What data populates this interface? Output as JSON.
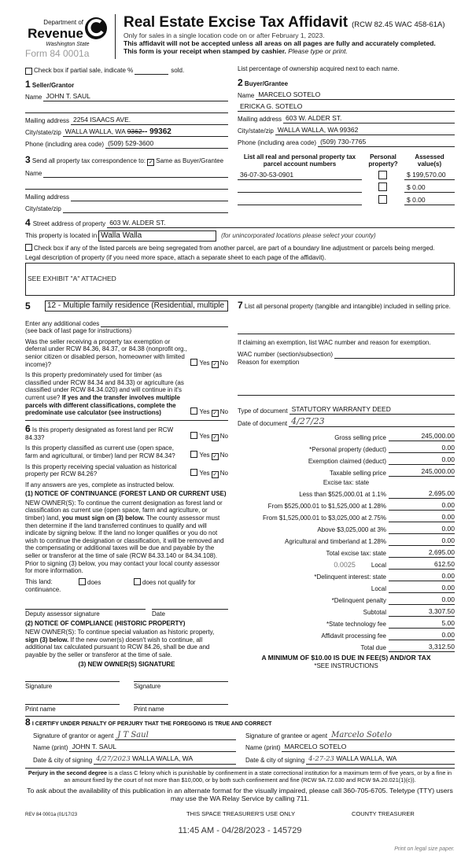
{
  "header": {
    "dept": "Department of",
    "revenue": "Revenue",
    "state": "Washington State",
    "form": "Form 84 0001a",
    "title": "Real Estate Excise Tax Affidavit",
    "rcw": "(RCW 82.45 WAC 458-61A)",
    "line1": "Only for sales in a single location code on or after February 1, 2023.",
    "line2": "This affidavit will not be accepted unless all areas on all pages are fully and accurately completed.",
    "line3": "This form is your receipt when stamped by cashier.",
    "line3i": "Please type or print."
  },
  "partial": {
    "label": "Check box if partial sale, indicate %",
    "sold": "sold.",
    "checked": false
  },
  "ownership_note": "List percentage of ownership acquired next to each name.",
  "seller": {
    "num": "1",
    "title": "Seller/Grantor",
    "name_label": "Name",
    "name": "JOHN T. SAUL",
    "mail_label": "Mailing address",
    "mail": "2254 ISAACS AVE.",
    "city_label": "City/state/zip",
    "city": "WALLA WALLA, WA",
    "city_struck": "9362",
    "zip": "-- 99362",
    "phone_label": "Phone (including area code)",
    "phone": "(509) 529-3600"
  },
  "buyer": {
    "num": "2",
    "title": "Buyer/Grantee",
    "name_label": "Name",
    "name1": "MARCELO SOTELO",
    "name2": "ERICKA G. SOTELO",
    "mail_label": "Mailing address",
    "mail": "603 W. ALDER ST.",
    "city_label": "City/state/zip",
    "city": "WALLA WALLA, WA 99362",
    "phone_label": "Phone (including area code)",
    "phone": "(509) 730-7765"
  },
  "correspondence": {
    "num": "3",
    "label": "Send all property tax correspondence to:",
    "same_label": "Same as Buyer/Grantee",
    "same_checked": true,
    "name_label": "Name",
    "mail_label": "Mailing address",
    "city_label": "City/state/zip"
  },
  "parcels": {
    "h1": "List all real and personal property tax",
    "h2": "parcel account numbers",
    "h3": "Personal",
    "h4": "property?",
    "h5": "Assessed",
    "h6": "value(s)",
    "rows": [
      {
        "number": "36-07-30-53-0901",
        "personal": false,
        "value": "$ 199,570.00"
      },
      {
        "number": "",
        "personal": false,
        "value": "$ 0.00"
      },
      {
        "number": "",
        "personal": false,
        "value": "$ 0.00"
      }
    ]
  },
  "property": {
    "num": "4",
    "street_label": "Street address of property",
    "street": "603 W. ALDER ST.",
    "located_label": "This property is located in",
    "located": "Walla Walla",
    "located_note": "(for unincorporated locations please select your county)",
    "segregated_label": "Check box if any of the listed parcels are being segregated from another parcel, are part of a boundary line adjustment or parcels being merged.",
    "legal_label": "Legal description of property (if you need more space, attach a separate sheet to each page of the affidavit).",
    "legal": "SEE EXHIBIT \"A\" ATTACHED"
  },
  "s5": {
    "num": "5",
    "use_code": "12 - Multiple family residence (Residential, multiple",
    "codes_label": "Enter any additional codes",
    "codes_note": "(see back of last page for instructions)",
    "q1": "Was the seller receiving a property tax exemption or deferral under RCW 84.36, 84.37, or 84.38 (nonprofit org., senior citizen or disabled person, homeowner with limited income)?",
    "q2": "Is this property predominately used for timber (as classified under RCW 84.34 and 84.33) or agriculture (as classified under RCW 84.34.020) and will continue in it's current use?",
    "q2b": "If yes and the transfer involves multiple parcels with different classifications, complete the predominate use calculator (see instructions)",
    "yes": "Yes",
    "no": "No"
  },
  "s6": {
    "num": "6",
    "q1": "Is this property designated as forest land per RCW 84.33?",
    "q2": "Is this property classified as current use (open space, farm and agricultural, or timber) land per RCW 84.34?",
    "q3": "Is this property receiving special valuation as historical property per RCW 84.26?",
    "if_yes": "If any answers are yes, complete as instructed below.",
    "n1_title": "(1) NOTICE OF CONTINUANCE (FOREST LAND OR CURRENT USE)",
    "n1_a": "NEW OWNER(S): To continue the current designation as forest land or classification as current use (open space, farm and agriculture, or timber) land,",
    "n1_b": "you must sign on (3) below.",
    "n1_c": "The county assessor must then determine if the land transferred continues to qualify and will indicate by signing below. If the land no longer qualifies or you do not wish to continue the designation or classification, it will be removed and the compensating or additional taxes will be due and payable by the seller or transferor at the time of sale (RCW 84.33.140 or 84.34.108). Prior to signing (3) below, you may contact your local county assessor for more information.",
    "land": "This land:",
    "does": "does",
    "does_not": "does not qualify for",
    "continuance": "continuance.",
    "deputy": "Deputy assessor signature",
    "date": "Date",
    "n2_title": "(2) NOTICE OF COMPLIANCE (HISTORIC PROPERTY)",
    "n2_a": "NEW OWNER(S): To continue special valuation as historic property,",
    "n2_b": "sign (3) below.",
    "n2_c": "If the new owner(s) doesn't wish to continue, all additional tax calculated pursuant to RCW 84.26, shall be due and payable by the seller or transferor at the time of sale.",
    "n3_title": "(3) NEW OWNER(S) SIGNATURE",
    "signature": "Signature",
    "print_name": "Print name"
  },
  "s7": {
    "num": "7",
    "label": "List all personal property (tangible and intangible) included in selling price.",
    "exempt_label": "If claiming an exemption, list WAC number and reason for exemption.",
    "wac_label": "WAC number (section/subsection)",
    "reason_label": "Reason for exemption",
    "doc_type_label": "Type of document",
    "doc_type": "STATUTORY WARRANTY DEED",
    "doc_date_label": "Date of document",
    "doc_date": "4/27/23"
  },
  "tax": {
    "heading": "Excise tax: state",
    "local_rate": "0.0025",
    "rows": [
      {
        "label": "Gross selling price",
        "value": "245,000.00"
      },
      {
        "label": "*Personal property (deduct)",
        "value": "0.00"
      },
      {
        "label": "Exemption claimed (deduct)",
        "value": "0.00"
      },
      {
        "label": "Taxable selling price",
        "value": "245,000.00"
      },
      {
        "label": "Less than $525,000.01 at 1.1%",
        "value": "2,695.00"
      },
      {
        "label": "From $525,000.01 to $1,525,000 at 1.28%",
        "value": "0.00"
      },
      {
        "label": "From $1,525,000.01 to $3,025,000 at 2.75%",
        "value": "0.00"
      },
      {
        "label": "Above $3,025,000 at 3%",
        "value": "0.00"
      },
      {
        "label": "Agricultural and timberland at 1.28%",
        "value": "0.00"
      },
      {
        "label": "Total excise tax: state",
        "value": "2,695.00"
      },
      {
        "label": "Local",
        "value": "612.50"
      },
      {
        "label": "*Delinquent interest: state",
        "value": "0.00"
      },
      {
        "label": "Local",
        "value": "0.00"
      },
      {
        "label": "*Delinquent penalty",
        "value": "0.00"
      },
      {
        "label": "Subtotal",
        "value": "3,307.50"
      },
      {
        "label": "*State technology fee",
        "value": "5.00"
      },
      {
        "label": "Affidavit processing fee",
        "value": "0.00"
      },
      {
        "label": "Total due",
        "value": "3,312.50"
      }
    ],
    "minimum": "A MINIMUM OF $10.00 IS DUE IN FEE(S) AND/OR TAX",
    "see": "*SEE INSTRUCTIONS"
  },
  "s8": {
    "num": "8",
    "title": "I CERTIFY UNDER PENALTY OF PERJURY THAT THE FOREGOING IS TRUE AND CORRECT",
    "g_sig_label": "Signature of grantor or agent",
    "g_sig": "J T Saul",
    "g_name_label": "Name (print)",
    "g_name": "JOHN T. SAUL",
    "g_date_label": "Date & city of signing",
    "g_date": "4/27/2023",
    "g_city": "WALLA WALLA, WA",
    "b_sig_label": "Signature of grantee or agent",
    "b_sig": "Marcelo Sotelo",
    "b_name_label": "Name (print)",
    "b_name": "MARCELO SOTELO",
    "b_date_label": "Date & city of signing",
    "b_date": "4-27-23",
    "b_city": "WALLA WALLA, WA"
  },
  "footer": {
    "perjury_b": "Perjury in the second degree",
    "perjury": "is a class C felony which is punishable by confinement in a state correctional institution for a maximum term of five years, or by",
    "perjury2": "a fine in an amount fixed by the court of not more than $10,000, or by both such confinement and fine (RCW 9A.72.030 and RCW 9A.20.021(1)(c)).",
    "ask1": "To ask about the availability of this publication in an alternate format for the visually impaired, please call 360-705-6705. Teletype",
    "ask2": "(TTY) users may use the WA Relay Service by calling 711.",
    "rev": "REV 84 0001a  (01/17/23",
    "treasurer_use": "THIS SPACE TREASURER'S USE ONLY",
    "treasurer": "COUNTY TREASURER",
    "stamp": "11:45 AM - 04/28/2023 - 145729",
    "print_legal": "Print on legal size paper."
  },
  "colors": {
    "text": "#111111",
    "form_gray": "#9a9a9a"
  }
}
